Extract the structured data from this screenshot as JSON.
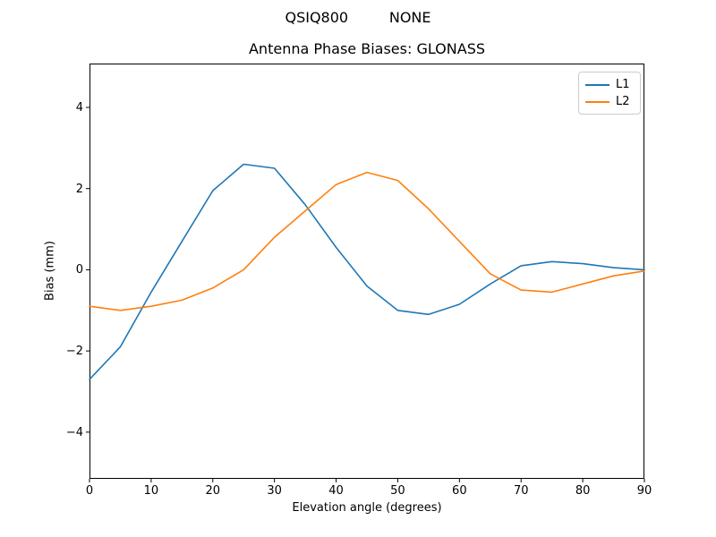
{
  "figure": {
    "suptitle": "QSIQ800         NONE",
    "title": "Antenna Phase Biases: GLONASS",
    "xlabel": "Elevation angle (degrees)",
    "ylabel": "Bias (mm)"
  },
  "legend": {
    "entries": [
      {
        "label": "L1",
        "color": "#1f77b4"
      },
      {
        "label": "L2",
        "color": "#ff7f0e"
      }
    ]
  },
  "chart_data": {
    "type": "line",
    "suptitle": "QSIQ800         NONE",
    "title": "Antenna Phase Biases: GLONASS",
    "xlabel": "Elevation angle (degrees)",
    "ylabel": "Bias (mm)",
    "xlim": [
      0,
      90
    ],
    "ylim": [
      -5.15,
      5.08
    ],
    "xticks": [
      0,
      10,
      20,
      30,
      40,
      50,
      60,
      70,
      80,
      90
    ],
    "yticks": [
      -4,
      -2,
      0,
      2,
      4
    ],
    "grid": false,
    "legend_position": "upper right",
    "x": [
      0,
      5,
      10,
      15,
      20,
      25,
      30,
      35,
      40,
      45,
      50,
      55,
      60,
      65,
      70,
      75,
      80,
      85,
      90
    ],
    "series": [
      {
        "name": "L1",
        "color": "#1f77b4",
        "values": [
          -2.7,
          -1.9,
          -0.55,
          0.7,
          1.95,
          2.6,
          2.5,
          1.6,
          0.55,
          -0.4,
          -1.0,
          -1.1,
          -0.85,
          -0.35,
          0.1,
          0.2,
          0.15,
          0.05,
          0.0
        ]
      },
      {
        "name": "L2",
        "color": "#ff7f0e",
        "values": [
          -0.9,
          -1.0,
          -0.9,
          -0.75,
          -0.45,
          0.0,
          0.8,
          1.45,
          2.1,
          2.4,
          2.2,
          1.5,
          0.7,
          -0.1,
          -0.5,
          -0.55,
          -0.35,
          -0.15,
          -0.03
        ]
      }
    ]
  }
}
